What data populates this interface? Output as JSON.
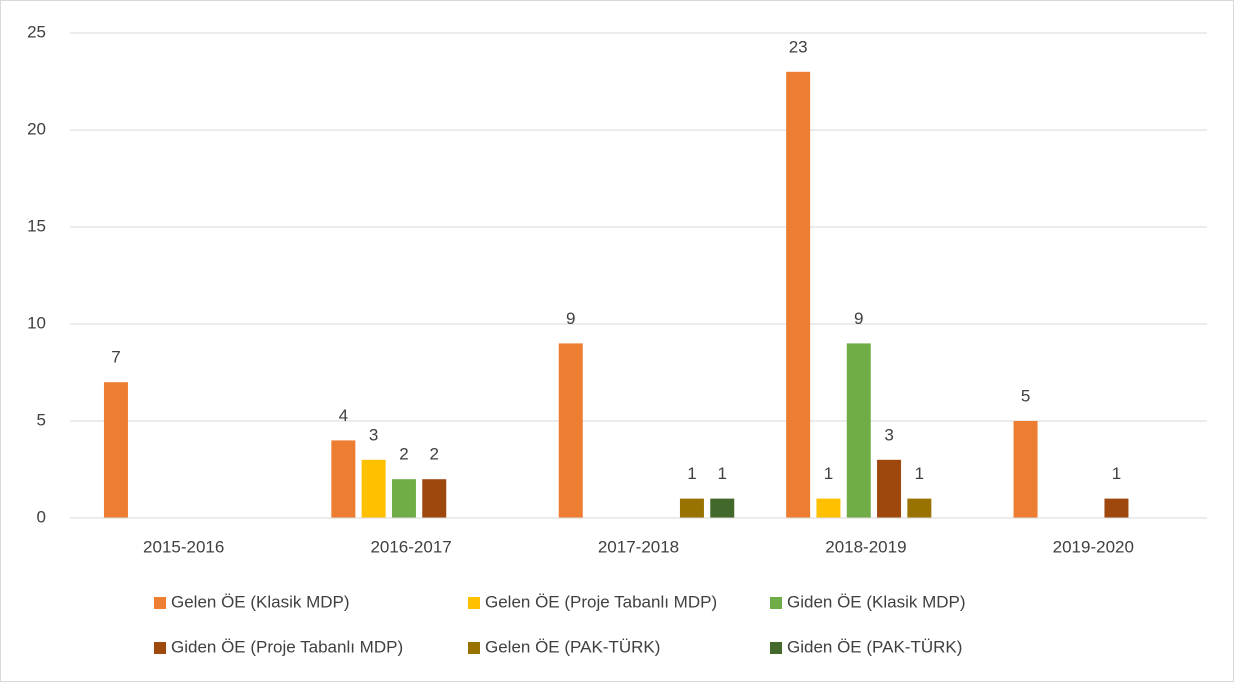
{
  "chart_data": {
    "type": "bar",
    "categories": [
      "2015-2016",
      "2016-2017",
      "2017-2018",
      "2018-2019",
      "2019-2020"
    ],
    "series": [
      {
        "name": "Gelen ÖE (Klasik MDP)",
        "color": "#ED7D31",
        "values": [
          7,
          4,
          9,
          23,
          5
        ]
      },
      {
        "name": "Gelen ÖE (Proje Tabanlı MDP)",
        "color": "#FFC000",
        "values": [
          null,
          3,
          null,
          1,
          null
        ]
      },
      {
        "name": "Giden ÖE (Klasik MDP)",
        "color": "#70AD47",
        "values": [
          null,
          2,
          null,
          9,
          null
        ]
      },
      {
        "name": "Giden ÖE (Proje Tabanlı MDP)",
        "color": "#9E480E",
        "values": [
          null,
          2,
          null,
          3,
          1
        ]
      },
      {
        "name": "Gelen ÖE (PAK-TÜRK)",
        "color": "#997300",
        "values": [
          null,
          null,
          1,
          1,
          null
        ]
      },
      {
        "name": "Giden ÖE (PAK-TÜRK)",
        "color": "#43682B",
        "values": [
          null,
          null,
          1,
          null,
          null
        ]
      }
    ],
    "ylim": [
      0,
      25
    ],
    "yticks": [
      0,
      5,
      10,
      15,
      20,
      25
    ],
    "grid": true,
    "legend": "bottom"
  }
}
